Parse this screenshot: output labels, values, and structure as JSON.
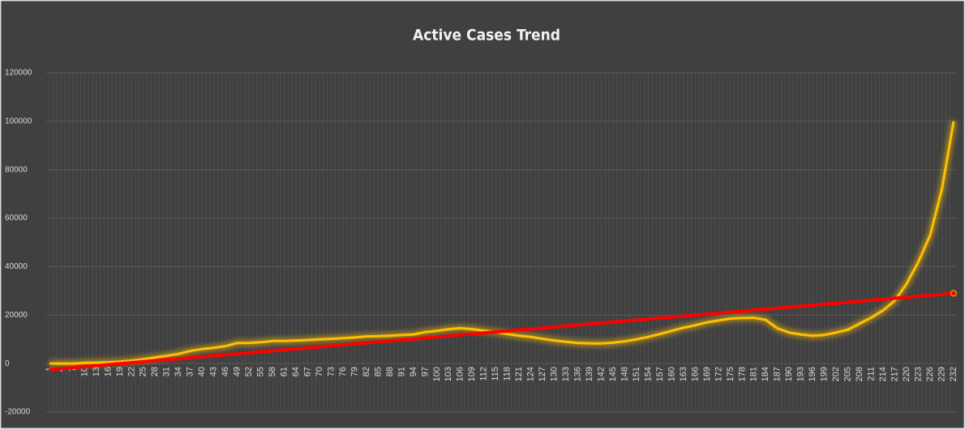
{
  "chart_data": {
    "type": "line",
    "title": "Active Cases Trend",
    "categories": [
      1,
      4,
      7,
      10,
      13,
      16,
      19,
      22,
      25,
      28,
      31,
      34,
      37,
      40,
      43,
      46,
      49,
      52,
      55,
      58,
      61,
      64,
      67,
      70,
      73,
      76,
      79,
      82,
      85,
      88,
      91,
      94,
      97,
      100,
      103,
      106,
      109,
      112,
      115,
      118,
      121,
      124,
      127,
      130,
      133,
      136,
      139,
      142,
      145,
      148,
      151,
      154,
      157,
      160,
      163,
      166,
      169,
      172,
      175,
      178,
      181,
      184,
      187,
      190,
      193,
      196,
      199,
      202,
      205,
      208,
      211,
      214,
      217,
      220,
      223,
      226,
      229,
      232
    ],
    "values": [
      0,
      0,
      0,
      300,
      400,
      500,
      800,
      1200,
      1800,
      2500,
      3200,
      4000,
      5200,
      6000,
      6500,
      7200,
      8500,
      8500,
      8800,
      9300,
      9300,
      9500,
      9700,
      10000,
      10200,
      10500,
      10800,
      11200,
      11300,
      11500,
      11800,
      12000,
      13000,
      13500,
      14200,
      14600,
      14200,
      13600,
      13000,
      12200,
      11500,
      11000,
      10200,
      9500,
      9000,
      8500,
      8300,
      8300,
      8600,
      9200,
      10000,
      11000,
      12200,
      13500,
      14800,
      15800,
      17000,
      17800,
      18600,
      18800,
      18900,
      18000,
      14500,
      12800,
      12000,
      11500,
      11800,
      12800,
      14000,
      16500,
      19000,
      22000,
      26000,
      33000,
      42000,
      53000,
      72000,
      100000
    ],
    "color": "#ffc000",
    "trend": {
      "color": "#ff0000",
      "values": [
        -2500,
        29000
      ]
    },
    "ylim": [
      -20000,
      120000
    ],
    "yticks": [
      -20000,
      0,
      20000,
      40000,
      60000,
      80000,
      100000,
      120000
    ],
    "grid": true
  }
}
